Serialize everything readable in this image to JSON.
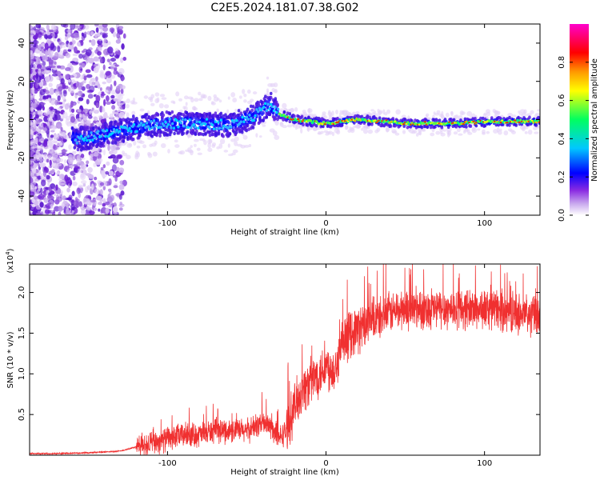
{
  "title": "C2E5.2024.181.07.38.G02",
  "chart_data": [
    {
      "type": "heatmap",
      "xlabel": "Height of straight line (km)",
      "ylabel": "Frequency (Hz)",
      "xlim": [
        -187,
        135
      ],
      "ylim": [
        -50,
        50
      ],
      "xticks": [
        -100,
        0,
        100
      ],
      "yticks": [
        -40,
        -20,
        0,
        20,
        40
      ],
      "colorbar": {
        "label": "Normalized spectral amplitude",
        "range": [
          0,
          1
        ],
        "ticks": [
          0.0,
          0.2,
          0.4,
          0.6,
          0.8
        ],
        "colors": [
          "#ffffff",
          "#8a2be2",
          "#0000ff",
          "#00c8ff",
          "#00ff00",
          "#ffff00",
          "#ff8000",
          "#ff0000",
          "#ff00ff"
        ]
      },
      "ridge": [
        {
          "x": -155,
          "y": -10
        },
        {
          "x": -140,
          "y": -8
        },
        {
          "x": -120,
          "y": -4
        },
        {
          "x": -100,
          "y": -2
        },
        {
          "x": -80,
          "y": -2
        },
        {
          "x": -60,
          "y": -3
        },
        {
          "x": -45,
          "y": 2
        },
        {
          "x": -35,
          "y": 8
        },
        {
          "x": -30,
          "y": 3
        },
        {
          "x": -20,
          "y": 0
        },
        {
          "x": 0,
          "y": -2
        },
        {
          "x": 20,
          "y": 0
        },
        {
          "x": 50,
          "y": -2
        },
        {
          "x": 80,
          "y": -2
        },
        {
          "x": 110,
          "y": -1
        },
        {
          "x": 135,
          "y": -1
        }
      ]
    },
    {
      "type": "line",
      "xlabel": "Height of straight line (km)",
      "ylabel": "SNR (10 * v/v)",
      "scale_label": "(x10",
      "scale_exp": "4",
      "xlim": [
        -187,
        135
      ],
      "ylim": [
        0,
        2.35
      ],
      "xticks": [
        -100,
        0,
        100
      ],
      "yticks": [
        0.5,
        1.0,
        1.5,
        2.0
      ],
      "ytick_labels": [
        "0.5",
        "1.0",
        "1.5",
        "2.0"
      ],
      "line_color": "#f03030",
      "series": [
        {
          "x": [
            -187,
            -170,
            -150,
            -130,
            -120,
            -110,
            -100,
            -90,
            -80,
            -70,
            -60,
            -50,
            -40,
            -35,
            -30,
            -25,
            -20,
            -15,
            -10,
            -5,
            0,
            5,
            10,
            15,
            20,
            25,
            30,
            40,
            50,
            60,
            70,
            80,
            90,
            100,
            110,
            120,
            130,
            135
          ],
          "values": [
            0.02,
            0.02,
            0.03,
            0.05,
            0.1,
            0.15,
            0.2,
            0.25,
            0.25,
            0.3,
            0.3,
            0.3,
            0.4,
            0.35,
            0.2,
            0.3,
            0.6,
            0.8,
            0.9,
            1.0,
            1.1,
            1.05,
            1.3,
            1.5,
            1.55,
            1.6,
            1.65,
            1.75,
            1.8,
            1.8,
            1.8,
            1.8,
            1.8,
            1.8,
            1.78,
            1.75,
            1.7,
            1.72
          ]
        }
      ]
    }
  ]
}
